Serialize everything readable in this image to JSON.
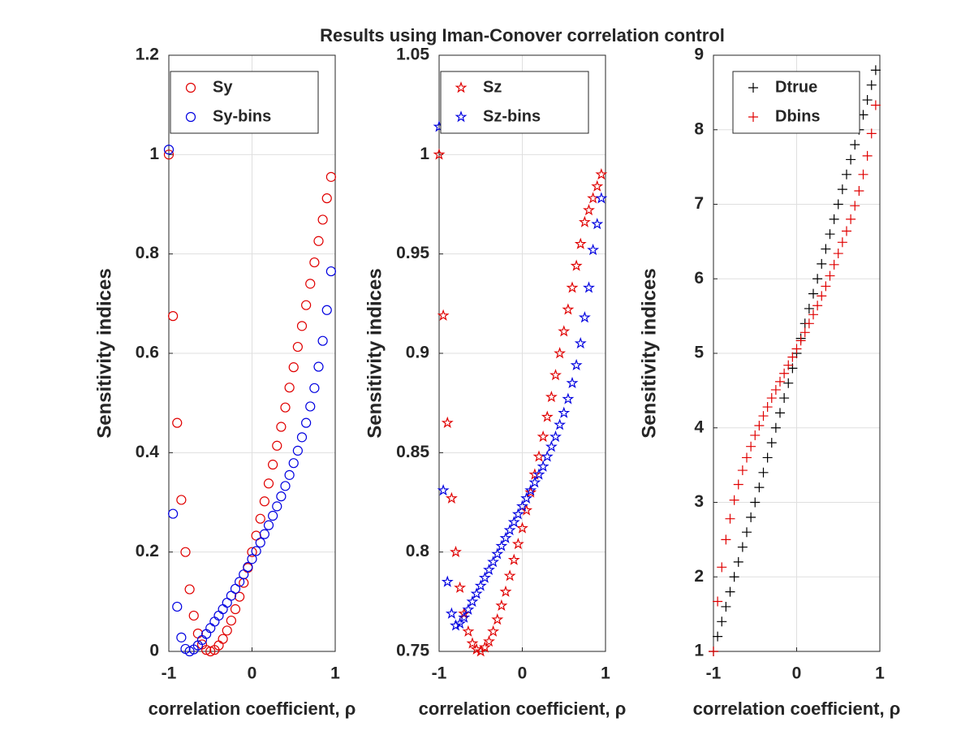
{
  "chart_data": [
    {
      "type": "scatter",
      "xlabel": "correlation coefficient, ρ",
      "ylabel": "Sensitivity indices",
      "x": [
        -1,
        -0.95,
        -0.9,
        -0.85,
        -0.8,
        -0.75,
        -0.7,
        -0.65,
        -0.6,
        -0.55,
        -0.5,
        -0.45,
        -0.4,
        -0.35,
        -0.3,
        -0.25,
        -0.2,
        -0.15,
        -0.1,
        -0.05,
        0,
        0.05,
        0.1,
        0.15,
        0.2,
        0.25,
        0.3,
        0.35,
        0.4,
        0.45,
        0.5,
        0.55,
        0.6,
        0.65,
        0.7,
        0.75,
        0.8,
        0.85,
        0.9,
        0.95
      ],
      "series": [
        {
          "name": "Sy",
          "color": "#e00000",
          "marker": "circle",
          "values": [
            1.0,
            0.675,
            0.46,
            0.305,
            0.2,
            0.125,
            0.072,
            0.036,
            0.014,
            0.003,
            0.0,
            0.003,
            0.012,
            0.025,
            0.042,
            0.062,
            0.085,
            0.11,
            0.138,
            0.168,
            0.2,
            0.233,
            0.267,
            0.302,
            0.338,
            0.376,
            0.414,
            0.452,
            0.491,
            0.531,
            0.572,
            0.613,
            0.655,
            0.697,
            0.74,
            0.783,
            0.826,
            0.869,
            0.912,
            0.955
          ]
        },
        {
          "name": "Sy-bins",
          "color": "#0000e0",
          "marker": "circle",
          "values": [
            1.01,
            0.277,
            0.09,
            0.028,
            0.005,
            0.0,
            0.004,
            0.012,
            0.023,
            0.035,
            0.047,
            0.06,
            0.072,
            0.085,
            0.098,
            0.112,
            0.126,
            0.14,
            0.155,
            0.17,
            0.186,
            0.202,
            0.219,
            0.236,
            0.254,
            0.273,
            0.292,
            0.312,
            0.333,
            0.355,
            0.379,
            0.404,
            0.431,
            0.46,
            0.493,
            0.53,
            0.573,
            0.625,
            0.687,
            0.765
          ]
        }
      ],
      "xlim": [
        -1,
        1
      ],
      "xticks": [
        -1,
        0,
        1
      ],
      "ylim": [
        0,
        1.2
      ],
      "yticks": [
        0,
        0.2,
        0.4,
        0.6,
        0.8,
        1,
        1.2
      ],
      "grid": true,
      "legend": "top-left"
    },
    {
      "type": "scatter",
      "title": "Results using Iman-Conover correlation control",
      "xlabel": "correlation coefficient, ρ",
      "ylabel": "Sensitivity indices",
      "x": [
        -1,
        -0.95,
        -0.9,
        -0.85,
        -0.8,
        -0.75,
        -0.7,
        -0.65,
        -0.6,
        -0.55,
        -0.5,
        -0.45,
        -0.4,
        -0.35,
        -0.3,
        -0.25,
        -0.2,
        -0.15,
        -0.1,
        -0.05,
        0,
        0.05,
        0.1,
        0.15,
        0.2,
        0.25,
        0.3,
        0.35,
        0.4,
        0.45,
        0.5,
        0.55,
        0.6,
        0.65,
        0.7,
        0.75,
        0.8,
        0.85,
        0.9,
        0.95
      ],
      "series": [
        {
          "name": "Sz",
          "color": "#e00000",
          "marker": "star",
          "values": [
            1.0,
            0.919,
            0.865,
            0.827,
            0.8,
            0.782,
            0.769,
            0.76,
            0.754,
            0.751,
            0.75,
            0.752,
            0.755,
            0.76,
            0.766,
            0.773,
            0.78,
            0.788,
            0.796,
            0.804,
            0.812,
            0.821,
            0.83,
            0.839,
            0.848,
            0.858,
            0.868,
            0.878,
            0.889,
            0.9,
            0.911,
            0.922,
            0.933,
            0.944,
            0.955,
            0.966,
            0.972,
            0.978,
            0.984,
            0.99
          ]
        },
        {
          "name": "Sz-bins",
          "color": "#0000e0",
          "marker": "star",
          "values": [
            1.014,
            0.831,
            0.785,
            0.769,
            0.763,
            0.764,
            0.767,
            0.771,
            0.775,
            0.779,
            0.783,
            0.787,
            0.791,
            0.795,
            0.799,
            0.803,
            0.807,
            0.811,
            0.815,
            0.819,
            0.823,
            0.827,
            0.831,
            0.835,
            0.839,
            0.843,
            0.848,
            0.853,
            0.858,
            0.864,
            0.87,
            0.877,
            0.885,
            0.894,
            0.905,
            0.918,
            0.933,
            0.952,
            0.965,
            0.978
          ]
        }
      ],
      "xlim": [
        -1,
        1
      ],
      "xticks": [
        -1,
        0,
        1
      ],
      "ylim": [
        0.75,
        1.05
      ],
      "yticks": [
        0.75,
        0.8,
        0.85,
        0.9,
        0.95,
        1,
        1.05
      ],
      "grid": true,
      "legend": "top-left"
    },
    {
      "type": "scatter",
      "xlabel": "correlation coefficient, ρ",
      "ylabel": "Sensitivity indices",
      "x": [
        -1,
        -0.95,
        -0.9,
        -0.85,
        -0.8,
        -0.75,
        -0.7,
        -0.65,
        -0.6,
        -0.55,
        -0.5,
        -0.45,
        -0.4,
        -0.35,
        -0.3,
        -0.25,
        -0.2,
        -0.15,
        -0.1,
        -0.05,
        0,
        0.05,
        0.1,
        0.15,
        0.2,
        0.25,
        0.3,
        0.35,
        0.4,
        0.45,
        0.5,
        0.55,
        0.6,
        0.65,
        0.7,
        0.75,
        0.8,
        0.85,
        0.9,
        0.95
      ],
      "series": [
        {
          "name": "Dtrue",
          "color": "#000000",
          "marker": "plus",
          "values": [
            1,
            1.2,
            1.4,
            1.6,
            1.8,
            2,
            2.2,
            2.4,
            2.6,
            2.8,
            3,
            3.2,
            3.4,
            3.6,
            3.8,
            4,
            4.2,
            4.4,
            4.6,
            4.8,
            5,
            5.2,
            5.4,
            5.6,
            5.8,
            6,
            6.2,
            6.4,
            6.6,
            6.8,
            7,
            7.2,
            7.4,
            7.6,
            7.8,
            8,
            8.2,
            8.4,
            8.6,
            8.8
          ]
        },
        {
          "name": "Dbins",
          "color": "#e00000",
          "marker": "plus",
          "values": [
            1,
            1.67,
            2.13,
            2.5,
            2.78,
            3.03,
            3.24,
            3.43,
            3.6,
            3.75,
            3.9,
            4.03,
            4.16,
            4.28,
            4.4,
            4.51,
            4.62,
            4.73,
            4.84,
            4.95,
            5.06,
            5.17,
            5.28,
            5.4,
            5.52,
            5.64,
            5.77,
            5.9,
            6.04,
            6.19,
            6.34,
            6.49,
            6.64,
            6.8,
            6.98,
            7.18,
            7.4,
            7.65,
            7.95,
            8.33
          ]
        }
      ],
      "xlim": [
        -1,
        1
      ],
      "xticks": [
        -1,
        0,
        1
      ],
      "ylim": [
        1,
        9
      ],
      "yticks": [
        1,
        2,
        3,
        4,
        5,
        6,
        7,
        8,
        9
      ],
      "grid": true,
      "legend": "top-left"
    }
  ]
}
